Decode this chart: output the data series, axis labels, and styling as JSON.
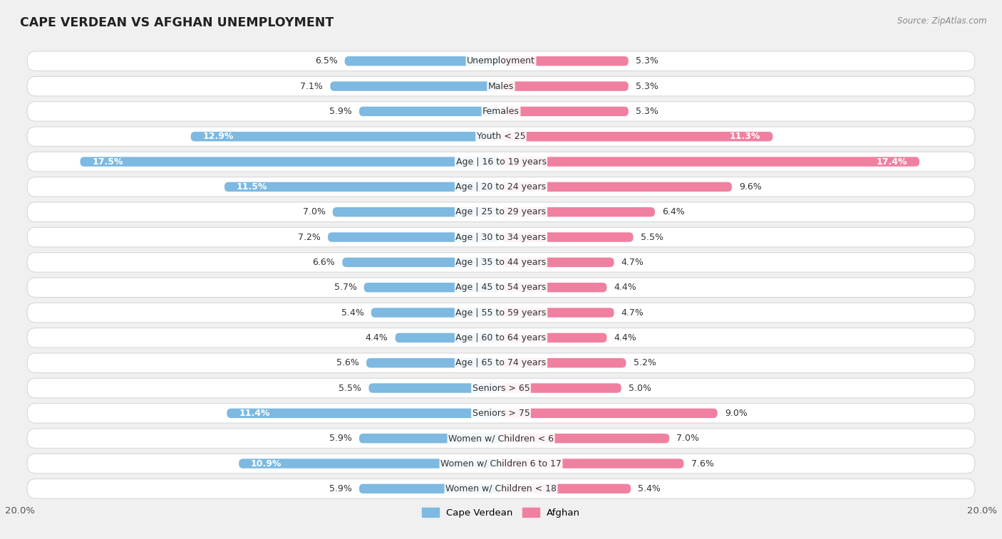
{
  "title": "CAPE VERDEAN VS AFGHAN UNEMPLOYMENT",
  "source": "Source: ZipAtlas.com",
  "categories": [
    "Unemployment",
    "Males",
    "Females",
    "Youth < 25",
    "Age | 16 to 19 years",
    "Age | 20 to 24 years",
    "Age | 25 to 29 years",
    "Age | 30 to 34 years",
    "Age | 35 to 44 years",
    "Age | 45 to 54 years",
    "Age | 55 to 59 years",
    "Age | 60 to 64 years",
    "Age | 65 to 74 years",
    "Seniors > 65",
    "Seniors > 75",
    "Women w/ Children < 6",
    "Women w/ Children 6 to 17",
    "Women w/ Children < 18"
  ],
  "cape_verdean": [
    6.5,
    7.1,
    5.9,
    12.9,
    17.5,
    11.5,
    7.0,
    7.2,
    6.6,
    5.7,
    5.4,
    4.4,
    5.6,
    5.5,
    11.4,
    5.9,
    10.9,
    5.9
  ],
  "afghan": [
    5.3,
    5.3,
    5.3,
    11.3,
    17.4,
    9.6,
    6.4,
    5.5,
    4.7,
    4.4,
    4.7,
    4.4,
    5.2,
    5.0,
    9.0,
    7.0,
    7.6,
    5.4
  ],
  "max_val": 20.0,
  "cv_color": "#7db9e0",
  "af_color": "#f080a0",
  "cv_color_light": "#afd0ed",
  "af_color_light": "#f5afc0",
  "row_bg": "#ffffff",
  "row_border": "#d8d8d8",
  "bg_color": "#f0f0f0",
  "label_fontsize": 9.0,
  "title_fontsize": 12.5,
  "legend_fontsize": 9.5,
  "value_inside_threshold": 10.0
}
